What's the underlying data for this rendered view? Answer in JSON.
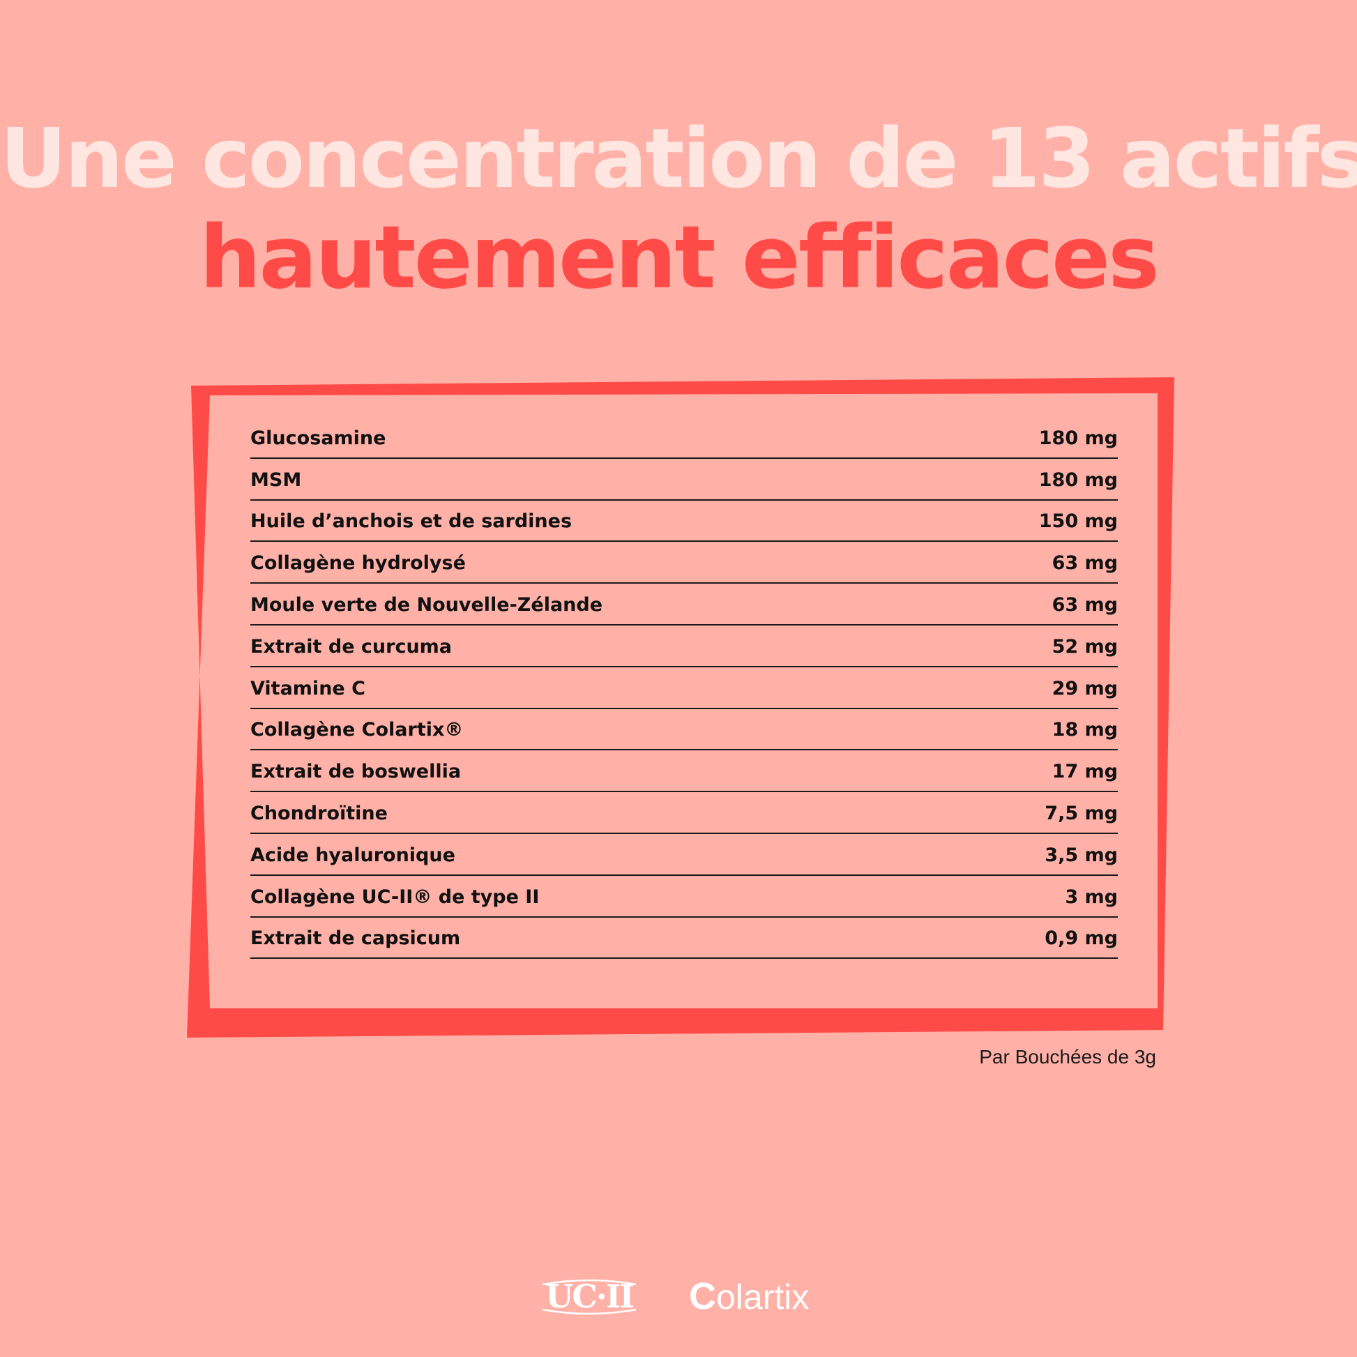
{
  "headline": {
    "line1": "Une concentration de 13 actifs",
    "line2": "hautement efficaces"
  },
  "ingredients": [
    {
      "name": "Glucosamine",
      "amount": "180 mg"
    },
    {
      "name": "MSM",
      "amount": "180 mg"
    },
    {
      "name": "Huile d’anchois et de sardines",
      "amount": "150 mg"
    },
    {
      "name": "Collagène hydrolysé",
      "amount": "63 mg"
    },
    {
      "name": "Moule verte de Nouvelle-Zélande",
      "amount": "63 mg"
    },
    {
      "name": "Extrait de curcuma",
      "amount": "52 mg"
    },
    {
      "name": "Vitamine C",
      "amount": "29 mg"
    },
    {
      "name": "Collagène Colartix®",
      "amount": "18 mg"
    },
    {
      "name": "Extrait de boswellia",
      "amount": "17 mg"
    },
    {
      "name": "Chondroïtine",
      "amount": "7,5 mg"
    },
    {
      "name": "Acide hyaluronique",
      "amount": "3,5 mg"
    },
    {
      "name": "Collagène UC-II® de type II",
      "amount": "3 mg"
    },
    {
      "name": "Extrait de capsicum",
      "amount": "0,9 mg"
    }
  ],
  "footnote": "Par Bouchées de 3g",
  "logos": {
    "ucii": "UC·II",
    "colartix_initial": "C",
    "colartix_rest": "olartix"
  },
  "colors": {
    "background": "#FFB1A7",
    "accent": "#FF4B48",
    "headline_light": "#FFE6E0"
  }
}
